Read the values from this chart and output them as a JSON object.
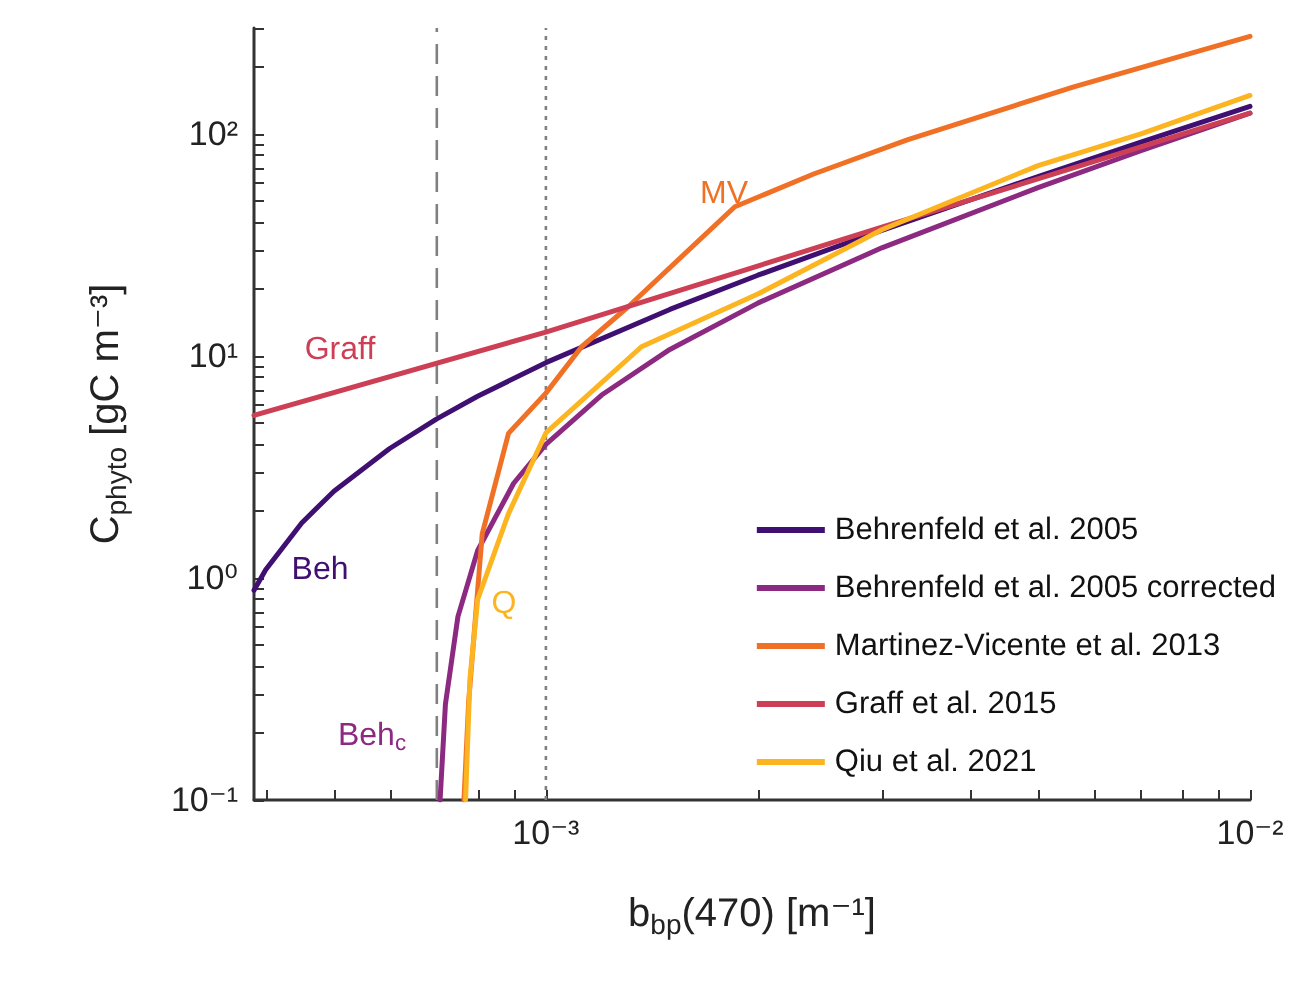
{
  "chart_data": {
    "type": "line",
    "xlabel": "b$_{bp}$(470) [m⁻¹]",
    "ylabel": "C$_{phyto}$ [gC m⁻³]",
    "log": "xy",
    "grid": false,
    "legend": "bottom right",
    "marker": "none",
    "line_style": "solid",
    "xlim": [
      0.000385,
      0.01
    ],
    "ylim": [
      0.1,
      300
    ],
    "xticks": [
      {
        "value": 0.0004,
        "label": null
      },
      {
        "value": 0.0005,
        "label": null
      },
      {
        "value": 0.0006,
        "label": null
      },
      {
        "value": 0.0007,
        "label": null
      },
      {
        "value": 0.0008,
        "label": null
      },
      {
        "value": 0.0009,
        "label": null
      },
      {
        "value": 0.001,
        "label": "10⁻³"
      },
      {
        "value": 0.002,
        "label": null
      },
      {
        "value": 0.003,
        "label": null
      },
      {
        "value": 0.004,
        "label": null
      },
      {
        "value": 0.005,
        "label": null
      },
      {
        "value": 0.006,
        "label": null
      },
      {
        "value": 0.007,
        "label": null
      },
      {
        "value": 0.008,
        "label": null
      },
      {
        "value": 0.009,
        "label": null
      },
      {
        "value": 0.01,
        "label": "10⁻²"
      }
    ],
    "yticks": [
      {
        "value": 0.1,
        "label": "10⁻¹"
      },
      {
        "value": 0.2,
        "label": null
      },
      {
        "value": 0.3,
        "label": null
      },
      {
        "value": 0.4,
        "label": null
      },
      {
        "value": 0.5,
        "label": null
      },
      {
        "value": 0.6,
        "label": null
      },
      {
        "value": 0.7,
        "label": null
      },
      {
        "value": 0.8,
        "label": null
      },
      {
        "value": 0.9,
        "label": null
      },
      {
        "value": 1,
        "label": "10⁰"
      },
      {
        "value": 2,
        "label": null
      },
      {
        "value": 3,
        "label": null
      },
      {
        "value": 4,
        "label": null
      },
      {
        "value": 5,
        "label": null
      },
      {
        "value": 6,
        "label": null
      },
      {
        "value": 7,
        "label": null
      },
      {
        "value": 8,
        "label": null
      },
      {
        "value": 9,
        "label": null
      },
      {
        "value": 10,
        "label": "10¹"
      },
      {
        "value": 20,
        "label": null
      },
      {
        "value": 30,
        "label": null
      },
      {
        "value": 40,
        "label": null
      },
      {
        "value": 50,
        "label": null
      },
      {
        "value": 60,
        "label": null
      },
      {
        "value": 70,
        "label": null
      },
      {
        "value": 80,
        "label": null
      },
      {
        "value": 90,
        "label": null
      },
      {
        "value": 100,
        "label": "10²"
      },
      {
        "value": 200,
        "label": null
      },
      {
        "value": 300,
        "label": null
      }
    ],
    "series": [
      {
        "name": "Behrenfeld et al. 2005",
        "color": "#3f0f72",
        "x": [
          0.000385,
          0.0004,
          0.00045,
          0.0005,
          0.0006,
          0.0007,
          0.0008,
          0.001,
          0.0015,
          0.002,
          0.003,
          0.005,
          0.007,
          0.01
        ],
        "values": [
          0.88,
          1.09,
          1.77,
          2.46,
          3.83,
          5.21,
          6.58,
          9.33,
          16.2,
          23.1,
          36.8,
          64.3,
          91.8,
          133
        ]
      },
      {
        "name": "Behrenfeld et al. 2005 corrected",
        "color": "#8c2981",
        "x": [
          0.0007075,
          0.00072,
          0.00075,
          0.0008,
          0.0009,
          0.001,
          0.0012,
          0.0015,
          0.002,
          0.003,
          0.005,
          0.007,
          0.01
        ],
        "values": [
          0.1,
          0.27,
          0.67,
          1.33,
          2.67,
          4.0,
          6.67,
          10.7,
          17.3,
          30.7,
          57.3,
          84,
          124
        ]
      },
      {
        "name": "Martinez-Vicente et al. 2013",
        "color": "#f07125",
        "x": [
          0.000765,
          0.000777,
          0.000812,
          0.000885,
          0.001,
          0.001124,
          0.00131,
          0.001855,
          0.0024,
          0.00326,
          0.00562,
          0.01
        ],
        "values": [
          0.1,
          0.28,
          1.58,
          4.48,
          6.8,
          11.0,
          16.7,
          47,
          66,
          94,
          163,
          275
        ]
      },
      {
        "name": "Graff et al. 2015",
        "color": "#cd3f55",
        "x": [
          0.000385,
          0.001,
          0.003,
          0.01
        ],
        "values": [
          5.4,
          12.8,
          38,
          124
        ]
      },
      {
        "name": "Qiu et al. 2021",
        "color": "#fcb520",
        "x": [
          0.000769,
          0.00078,
          0.0008,
          0.000885,
          0.001,
          0.001367,
          0.002,
          0.003,
          0.005,
          0.007,
          0.01
        ],
        "values": [
          0.1,
          0.35,
          0.8,
          1.95,
          4.5,
          11,
          19,
          37,
          72,
          100,
          149
        ]
      }
    ],
    "ref_lines": [
      {
        "axis": "x",
        "value": 0.0007,
        "label": null,
        "color": "#808080",
        "line_style": "dashed"
      },
      {
        "axis": "x",
        "value": 0.001,
        "label": null,
        "color": "#808080",
        "line_style": "dotted"
      }
    ],
    "annotations": [
      "Beh",
      "Beh$_{c}$",
      "MV",
      "Graff",
      "Q"
    ]
  }
}
